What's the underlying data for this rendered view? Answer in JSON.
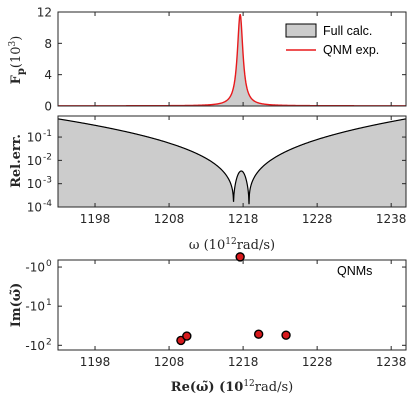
{
  "colors": {
    "fill": "#cccccc",
    "qnm_line": "#e8191c",
    "full_line": "#000000",
    "marker_fill": "#d7191c",
    "axis": "#262626"
  },
  "chart_data": [
    {
      "type": "area",
      "ylabel": "F",
      "ylabel_sub": "p",
      "ylabel_unit": "(10",
      "ylabel_exp": "3",
      "ylabel_close": ")",
      "xlim": [
        1193,
        1240
      ],
      "ylim": [
        0,
        12
      ],
      "yticks": [
        0,
        4,
        8,
        12
      ],
      "ytick_labels": [
        "0",
        "4",
        "8",
        "12"
      ],
      "grid": false,
      "legend": {
        "placement": "top-right",
        "entries": [
          "Full calc.",
          "QNM exp."
        ]
      },
      "peak": {
        "x": 1217.6,
        "y": 11.7,
        "half_width": 0.45
      },
      "series": [
        {
          "name": "Full calc.",
          "style": "gray-fill-black-outline"
        },
        {
          "name": "QNM exp.",
          "style": "red-line"
        }
      ]
    },
    {
      "type": "area",
      "ylabel": "Rel.err.",
      "xlabel": "ω (10",
      "xlabel_exp": "12",
      "xlabel_unit": "rad/s)",
      "scale": "log",
      "xlim": [
        1193,
        1240
      ],
      "ylim": [
        0.0001,
        0.8
      ],
      "yticks": [
        0.0001,
        0.001,
        0.01,
        0.1
      ],
      "ytick_labels": [
        "10",
        "10",
        "10",
        "10"
      ],
      "ytick_exps": [
        "-4",
        "-3",
        "-2",
        "-1"
      ],
      "xticks": [
        1198,
        1208,
        1218,
        1228,
        1238
      ],
      "xtick_labels": [
        "1198",
        "1208",
        "1218",
        "1228",
        "1238"
      ],
      "zeros": [
        1216.7,
        1218.8
      ],
      "local_max": {
        "x": 1217.8,
        "y": 0.0035
      },
      "edge_values": [
        0.6,
        0.6
      ],
      "grid": false
    },
    {
      "type": "scatter",
      "ylabel": "Im(ω̃)",
      "xlabel": "Re(ω̃) (10",
      "xlabel_exp": "12",
      "xlabel_unit": "rad/s)",
      "annotation": "QNMs",
      "xlim": [
        1193,
        1240
      ],
      "yticks": [
        -1,
        -10,
        -100
      ],
      "ytick_labels": [
        "-10",
        "-10",
        "-10"
      ],
      "ytick_exps": [
        "0",
        "1",
        "2"
      ],
      "xticks": [
        1198,
        1208,
        1218,
        1228,
        1238
      ],
      "xtick_labels": [
        "1198",
        "1208",
        "1218",
        "1228",
        "1238"
      ],
      "points": [
        {
          "x": 1217.6,
          "y": -0.55
        },
        {
          "x": 1209.6,
          "y": -75
        },
        {
          "x": 1210.4,
          "y": -58
        },
        {
          "x": 1220.1,
          "y": -52
        },
        {
          "x": 1223.8,
          "y": -55
        }
      ],
      "grid": false
    }
  ]
}
